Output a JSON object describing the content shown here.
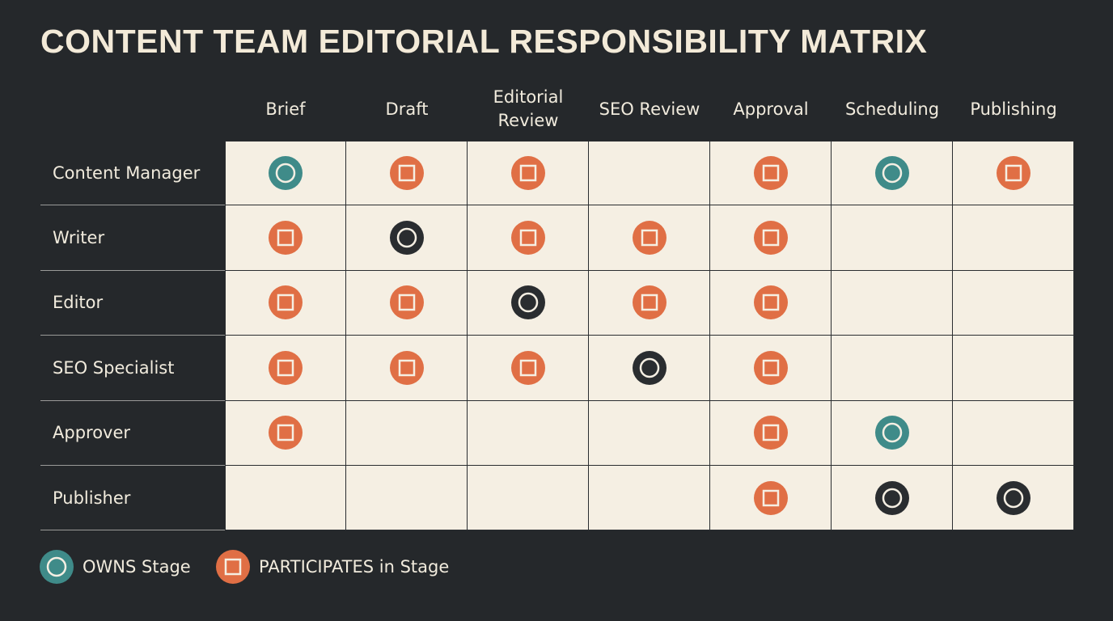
{
  "title": "CONTENT TEAM EDITORIAL RESPONSIBILITY MATRIX",
  "columns": [
    "Brief",
    "Draft",
    "Editorial Review",
    "SEO Review",
    "Approval",
    "Scheduling",
    "Publishing"
  ],
  "markers": {
    "owns": {
      "symbol": "circle",
      "color": "#3f8b89"
    },
    "owns-dark": {
      "symbol": "circle",
      "color": "#2a2d30"
    },
    "participates": {
      "symbol": "square",
      "color": "#e06f45"
    }
  },
  "rows": [
    {
      "name": "Content Manager",
      "cells": [
        "owns",
        "participates",
        "participates",
        null,
        "participates",
        "owns",
        "participates"
      ]
    },
    {
      "name": "Writer",
      "cells": [
        "participates",
        "owns-dark",
        "participates",
        "participates",
        "participates",
        null,
        null
      ]
    },
    {
      "name": "Editor",
      "cells": [
        "participates",
        "participates",
        "owns-dark",
        "participates",
        "participates",
        null,
        null
      ]
    },
    {
      "name": "SEO Specialist",
      "cells": [
        "participates",
        "participates",
        "participates",
        "owns-dark",
        "participates",
        null,
        null
      ]
    },
    {
      "name": "Approver",
      "cells": [
        "participates",
        null,
        null,
        null,
        "participates",
        "owns",
        null
      ]
    },
    {
      "name": "Publisher",
      "cells": [
        null,
        null,
        null,
        null,
        "participates",
        "owns-dark",
        "owns-dark"
      ]
    }
  ],
  "legend": [
    {
      "label": "OWNS Stage",
      "marker": "owns"
    },
    {
      "label": "PARTICIPATES in Stage",
      "marker": "participates"
    }
  ]
}
